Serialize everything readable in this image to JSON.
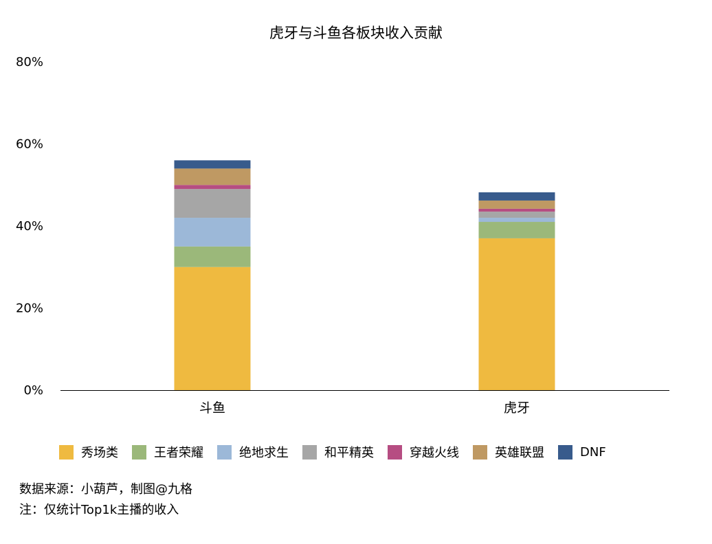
{
  "chart_data": {
    "type": "bar",
    "stacked": true,
    "title": "虎牙与斗鱼各板块收入贡献",
    "categories": [
      "斗鱼",
      "虎牙"
    ],
    "ylim": [
      0,
      80
    ],
    "yticks": [
      "0%",
      "20%",
      "40%",
      "60%",
      "80%"
    ],
    "grid": false,
    "legend_position": "bottom",
    "series": [
      {
        "name": "秀场类",
        "color": "#EFBA40",
        "values": [
          30.0,
          37.0
        ]
      },
      {
        "name": "王者荣耀",
        "color": "#9BB87A",
        "values": [
          5.0,
          4.0
        ]
      },
      {
        "name": "绝地求生",
        "color": "#9CB8D8",
        "values": [
          7.0,
          1.0
        ]
      },
      {
        "name": "和平精英",
        "color": "#A6A6A6",
        "values": [
          7.0,
          1.5
        ]
      },
      {
        "name": "穿越火线",
        "color": "#B64D82",
        "values": [
          1.0,
          0.7
        ]
      },
      {
        "name": "英雄联盟",
        "color": "#BF9963",
        "values": [
          4.0,
          2.0
        ]
      },
      {
        "name": "DNF",
        "color": "#385B8C",
        "values": [
          2.0,
          2.0
        ]
      }
    ]
  },
  "notes": {
    "source": "数据来源：小葫芦，制图@九格",
    "footnote": "注：仅统计Top1k主播的收入"
  }
}
